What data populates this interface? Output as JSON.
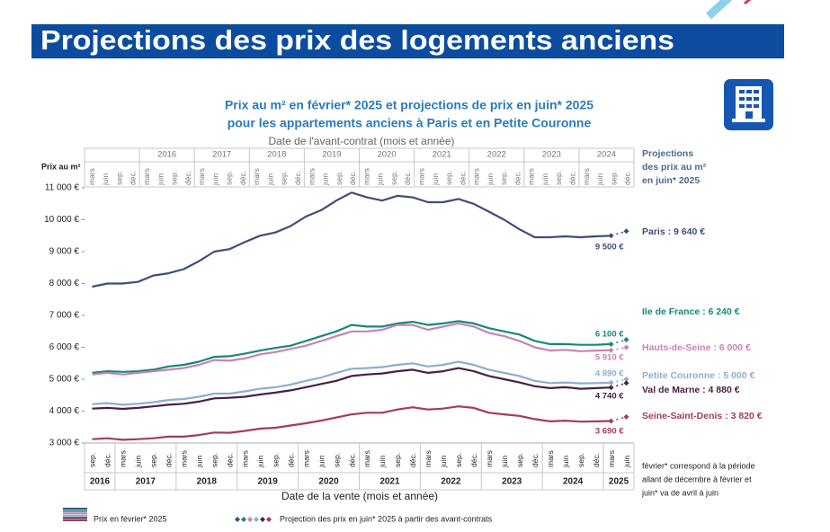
{
  "header": {
    "title": "Projections des prix des logements anciens"
  },
  "chart_data": {
    "type": "line",
    "title": [
      "Prix au m² en février* 2025 et projections de prix en juin* 2025",
      "pour les appartements anciens à Paris et en Petite Couronne"
    ],
    "top_axis_label": "Date de l'avant-contrat (mois et année)",
    "top_years": [
      null,
      "2016",
      "2017",
      "2018",
      "2019",
      "2020",
      "2021",
      "2022",
      "2023",
      "2024"
    ],
    "top_months": [
      "mars",
      "juin",
      "sep.",
      "déc.",
      "mars",
      "juin",
      "sep.",
      "déc.",
      "mars",
      "juin",
      "sep.",
      "déc.",
      "mars",
      "juin",
      "sep.",
      "déc.",
      "mars",
      "juin",
      "sep.",
      "déc.",
      "mars",
      "juin",
      "sep.",
      "déc.",
      "mars",
      "juin",
      "sep.",
      "déc.",
      "mars",
      "juin",
      "sep.",
      "déc.",
      "mars",
      "juin",
      "sep.",
      "déc.",
      "mars",
      "juin",
      "sep.",
      "déc."
    ],
    "ylabel": "Prix au m²",
    "xlabel": "Date de la vente (mois et année)",
    "years": [
      "2016",
      "2017",
      "2018",
      "2019",
      "2020",
      "2021",
      "2022",
      "2023",
      "2024",
      "2025"
    ],
    "categories": [
      "sep.",
      "déc.",
      "mars",
      "juin",
      "sep.",
      "déc.",
      "mars",
      "juin",
      "sep.",
      "déc.",
      "mars",
      "juin",
      "sep.",
      "déc.",
      "mars",
      "juin",
      "sep.",
      "déc.",
      "mars",
      "juin",
      "sep.",
      "déc.",
      "mars",
      "juin",
      "sep.",
      "déc.",
      "mars",
      "juin",
      "sep.",
      "déc.",
      "mars",
      "juin",
      "sep.",
      "déc.",
      "mars",
      "juin"
    ],
    "ylim": [
      3000,
      11000
    ],
    "yticks": [
      {
        "value": 3000,
        "label": "3 000 €"
      },
      {
        "value": 4000,
        "label": "4 000 €"
      },
      {
        "value": 5000,
        "label": "5 000 €"
      },
      {
        "value": 6000,
        "label": "6 000 €"
      },
      {
        "value": 7000,
        "label": "7 000 €"
      },
      {
        "value": 8000,
        "label": "8 000 €"
      },
      {
        "value": 9000,
        "label": "9 000 €"
      },
      {
        "value": 10000,
        "label": "10 000 €"
      },
      {
        "value": 11000,
        "label": "11 000 €"
      }
    ],
    "grid": false,
    "side_note": [
      "Projections",
      "des prix au m²",
      "en juin* 2025"
    ],
    "footnote": [
      "février* correspond à la période",
      "allant de décembre à février et",
      "juin* va de avril à juin"
    ],
    "legend": [
      "Prix en février* 2025",
      "Projection des prix en juin* 2025 à partir des avant-contrats"
    ],
    "series": [
      {
        "name": "Paris : 9 640 €",
        "color": "#3e4e7a",
        "values": [
          7900,
          8000,
          8000,
          8050,
          8250,
          8320,
          8450,
          8700,
          9000,
          9080,
          9300,
          9500,
          9600,
          9800,
          10100,
          10300,
          10600,
          10850,
          10700,
          10600,
          10750,
          10700,
          10550,
          10550,
          10650,
          10500,
          10250,
          10000,
          9700,
          9450,
          9450,
          9480,
          9450,
          9480,
          9500,
          null
        ],
        "value_labels": [
          null,
          null,
          null,
          null,
          null,
          null,
          null,
          null,
          null,
          null,
          null,
          null,
          null,
          null,
          null,
          null,
          null,
          null,
          null,
          null,
          null,
          null,
          null,
          null,
          null,
          null,
          null,
          null,
          null,
          null,
          null,
          null,
          null,
          null,
          "9 500 €",
          null
        ],
        "projection_values": [
          null,
          null,
          null,
          null,
          null,
          null,
          null,
          null,
          null,
          null,
          null,
          null,
          null,
          null,
          null,
          null,
          null,
          null,
          null,
          null,
          null,
          null,
          null,
          null,
          null,
          null,
          null,
          null,
          null,
          null,
          null,
          null,
          null,
          null,
          9500,
          9640
        ]
      },
      {
        "name": "Ile de France : 6 240 €",
        "color": "#17877a",
        "values": [
          5200,
          5250,
          5230,
          5250,
          5300,
          5400,
          5450,
          5550,
          5700,
          5720,
          5800,
          5900,
          5980,
          6050,
          6200,
          6350,
          6500,
          6700,
          6650,
          6650,
          6750,
          6800,
          6700,
          6750,
          6820,
          6750,
          6600,
          6500,
          6400,
          6200,
          6100,
          6100,
          6080,
          6080,
          6100,
          null
        ],
        "value_labels": [
          null,
          null,
          null,
          null,
          null,
          null,
          null,
          null,
          null,
          null,
          null,
          null,
          null,
          null,
          null,
          null,
          null,
          null,
          null,
          null,
          null,
          null,
          null,
          null,
          null,
          null,
          null,
          null,
          null,
          null,
          null,
          null,
          null,
          null,
          "6 100 €",
          null
        ],
        "projection_values": [
          null,
          null,
          null,
          null,
          null,
          null,
          null,
          null,
          null,
          null,
          null,
          null,
          null,
          null,
          null,
          null,
          null,
          null,
          null,
          null,
          null,
          null,
          null,
          null,
          null,
          null,
          null,
          null,
          null,
          null,
          null,
          null,
          null,
          null,
          6100,
          6240
        ]
      },
      {
        "name": "Hauts-de-Seine : 6 000 €",
        "color": "#c883b3",
        "values": [
          5150,
          5200,
          5150,
          5200,
          5250,
          5300,
          5350,
          5450,
          5600,
          5580,
          5650,
          5780,
          5850,
          5950,
          6050,
          6200,
          6350,
          6500,
          6500,
          6550,
          6700,
          6700,
          6550,
          6650,
          6750,
          6650,
          6450,
          6350,
          6200,
          6000,
          5900,
          5920,
          5880,
          5900,
          5910,
          null
        ],
        "value_labels": [
          null,
          null,
          null,
          null,
          null,
          null,
          null,
          null,
          null,
          null,
          null,
          null,
          null,
          null,
          null,
          null,
          null,
          null,
          null,
          null,
          null,
          null,
          null,
          null,
          null,
          null,
          null,
          null,
          null,
          null,
          null,
          null,
          null,
          null,
          "5 910 €",
          null
        ],
        "projection_values": [
          null,
          null,
          null,
          null,
          null,
          null,
          null,
          null,
          null,
          null,
          null,
          null,
          null,
          null,
          null,
          null,
          null,
          null,
          null,
          null,
          null,
          null,
          null,
          null,
          null,
          null,
          null,
          null,
          null,
          null,
          null,
          null,
          null,
          null,
          5910,
          6000
        ]
      },
      {
        "name": "Petite Couronne : 5 000 €",
        "color": "#8daed3",
        "values": [
          4220,
          4250,
          4200,
          4230,
          4280,
          4350,
          4380,
          4450,
          4550,
          4550,
          4620,
          4700,
          4750,
          4830,
          4950,
          5050,
          5200,
          5330,
          5350,
          5380,
          5450,
          5500,
          5400,
          5450,
          5550,
          5450,
          5300,
          5200,
          5100,
          4950,
          4880,
          4900,
          4870,
          4880,
          4890,
          null
        ],
        "value_labels": [
          null,
          null,
          null,
          null,
          null,
          null,
          null,
          null,
          null,
          null,
          null,
          null,
          null,
          null,
          null,
          null,
          null,
          null,
          null,
          null,
          null,
          null,
          null,
          null,
          null,
          null,
          null,
          null,
          null,
          null,
          null,
          null,
          null,
          null,
          "4 890 €",
          null
        ],
        "projection_values": [
          null,
          null,
          null,
          null,
          null,
          null,
          null,
          null,
          null,
          null,
          null,
          null,
          null,
          null,
          null,
          null,
          null,
          null,
          null,
          null,
          null,
          null,
          null,
          null,
          null,
          null,
          null,
          null,
          null,
          null,
          null,
          null,
          null,
          null,
          4890,
          5000
        ]
      },
      {
        "name": "Val de Marne : 4 880 €",
        "color": "#4b2043",
        "values": [
          4080,
          4100,
          4070,
          4100,
          4150,
          4200,
          4230,
          4300,
          4400,
          4420,
          4450,
          4520,
          4580,
          4650,
          4750,
          4850,
          4950,
          5100,
          5150,
          5180,
          5250,
          5300,
          5200,
          5250,
          5350,
          5250,
          5100,
          5000,
          4900,
          4780,
          4720,
          4750,
          4700,
          4720,
          4740,
          null
        ],
        "value_labels": [
          null,
          null,
          null,
          null,
          null,
          null,
          null,
          null,
          null,
          null,
          null,
          null,
          null,
          null,
          null,
          null,
          null,
          null,
          null,
          null,
          null,
          null,
          null,
          null,
          null,
          null,
          null,
          null,
          null,
          null,
          null,
          null,
          null,
          null,
          "4 740 €",
          null
        ],
        "projection_values": [
          null,
          null,
          null,
          null,
          null,
          null,
          null,
          null,
          null,
          null,
          null,
          null,
          null,
          null,
          null,
          null,
          null,
          null,
          null,
          null,
          null,
          null,
          null,
          null,
          null,
          null,
          null,
          null,
          null,
          null,
          null,
          null,
          null,
          null,
          4740,
          4880
        ]
      },
      {
        "name": "Seine-Saint-Denis : 3 820 €",
        "color": "#a63a5d",
        "values": [
          3120,
          3150,
          3100,
          3120,
          3150,
          3200,
          3200,
          3250,
          3330,
          3320,
          3380,
          3450,
          3480,
          3550,
          3620,
          3700,
          3800,
          3900,
          3950,
          3950,
          4050,
          4120,
          4050,
          4080,
          4150,
          4100,
          3950,
          3900,
          3850,
          3750,
          3680,
          3700,
          3670,
          3680,
          3690,
          null
        ],
        "value_labels": [
          null,
          null,
          null,
          null,
          null,
          null,
          null,
          null,
          null,
          null,
          null,
          null,
          null,
          null,
          null,
          null,
          null,
          null,
          null,
          null,
          null,
          null,
          null,
          null,
          null,
          null,
          null,
          null,
          null,
          null,
          null,
          null,
          null,
          null,
          "3 690 €",
          null
        ],
        "projection_values": [
          null,
          null,
          null,
          null,
          null,
          null,
          null,
          null,
          null,
          null,
          null,
          null,
          null,
          null,
          null,
          null,
          null,
          null,
          null,
          null,
          null,
          null,
          null,
          null,
          null,
          null,
          null,
          null,
          null,
          null,
          null,
          null,
          null,
          null,
          3690,
          3820
        ]
      }
    ]
  }
}
